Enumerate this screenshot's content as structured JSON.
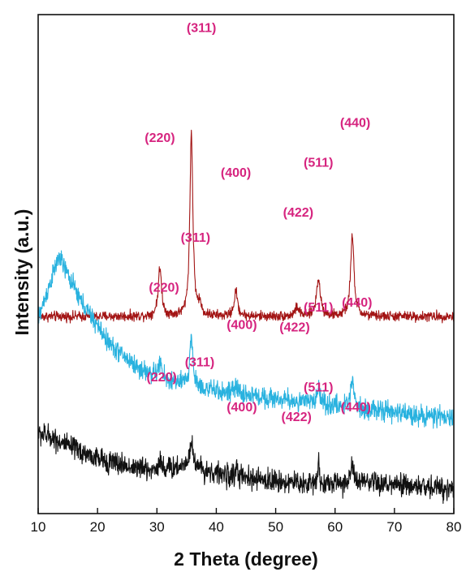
{
  "chart_data": {
    "type": "line",
    "xlabel": "2 Theta (degree)",
    "ylabel": "Intensity (a.u.)",
    "xlim": [
      10,
      80
    ],
    "xticks": [
      "10",
      "20",
      "30",
      "40",
      "50",
      "60",
      "70",
      "80"
    ],
    "yticks_shown": false,
    "grid": false,
    "legend": "none",
    "label_color": "#d6247f",
    "series": [
      {
        "color": "#a31515",
        "baseline_fraction": 0.395,
        "noise": 0.007,
        "background": [
          [
            10,
            0.0
          ],
          [
            80,
            0.0
          ]
        ],
        "peaks": [
          [
            30.5,
            0.095,
            0.35
          ],
          [
            35.8,
            0.37,
            0.3
          ],
          [
            37.2,
            0.02,
            0.3
          ],
          [
            43.3,
            0.05,
            0.35
          ],
          [
            53.6,
            0.018,
            0.4
          ],
          [
            57.2,
            0.075,
            0.4
          ],
          [
            62.9,
            0.16,
            0.35
          ]
        ],
        "labels": [
          {
            "text": "(220)",
            "x": 30.5,
            "y": 0.745
          },
          {
            "text": "(311)",
            "x": 37.5,
            "y": 0.965
          },
          {
            "text": "(400)",
            "x": 43.3,
            "y": 0.675
          },
          {
            "text": "(422)",
            "x": 53.8,
            "y": 0.595
          },
          {
            "text": "(511)",
            "x": 57.2,
            "y": 0.695
          },
          {
            "text": "(440)",
            "x": 63.4,
            "y": 0.775
          }
        ]
      },
      {
        "color": "#29b2df",
        "baseline_fraction": 0.19,
        "noise": 0.014,
        "background": [
          [
            10,
            0.2
          ],
          [
            13.5,
            0.325
          ],
          [
            17,
            0.24
          ],
          [
            22,
            0.15
          ],
          [
            27,
            0.1
          ],
          [
            32,
            0.075
          ],
          [
            40,
            0.055
          ],
          [
            50,
            0.04
          ],
          [
            60,
            0.025
          ],
          [
            80,
            0.0
          ]
        ],
        "peaks": [
          [
            30.5,
            0.03,
            0.35
          ],
          [
            35.8,
            0.1,
            0.3
          ],
          [
            43.3,
            0.012,
            0.4
          ],
          [
            57.2,
            0.03,
            0.4
          ],
          [
            62.9,
            0.06,
            0.35
          ]
        ],
        "labels": [
          {
            "text": "(220)",
            "x": 31.2,
            "y": 0.445
          },
          {
            "text": "(311)",
            "x": 36.5,
            "y": 0.545
          },
          {
            "text": "(400)",
            "x": 44.3,
            "y": 0.37
          },
          {
            "text": "(422)",
            "x": 53.2,
            "y": 0.365
          },
          {
            "text": "(511)",
            "x": 57.2,
            "y": 0.405
          },
          {
            "text": "(440)",
            "x": 63.7,
            "y": 0.415
          }
        ]
      },
      {
        "color": "#111111",
        "baseline_fraction": 0.03,
        "noise": 0.016,
        "background": [
          [
            10,
            0.13
          ],
          [
            12,
            0.125
          ],
          [
            15,
            0.105
          ],
          [
            20,
            0.08
          ],
          [
            25,
            0.065
          ],
          [
            30,
            0.055
          ],
          [
            35,
            0.065
          ],
          [
            40,
            0.05
          ],
          [
            45,
            0.04
          ],
          [
            55,
            0.03
          ],
          [
            65,
            0.03
          ],
          [
            80,
            0.02
          ]
        ],
        "peaks": [
          [
            30.5,
            0.02,
            0.4
          ],
          [
            35.8,
            0.045,
            0.45
          ],
          [
            43.4,
            0.025,
            0.15
          ],
          [
            57.2,
            0.06,
            0.12
          ],
          [
            62.9,
            0.03,
            0.4
          ]
        ],
        "labels": [
          {
            "text": "(220)",
            "x": 30.8,
            "y": 0.265
          },
          {
            "text": "(311)",
            "x": 37.2,
            "y": 0.295
          },
          {
            "text": "(400)",
            "x": 44.3,
            "y": 0.205
          },
          {
            "text": "(422)",
            "x": 53.5,
            "y": 0.185
          },
          {
            "text": "(511)",
            "x": 57.2,
            "y": 0.245
          },
          {
            "text": "(440)",
            "x": 63.5,
            "y": 0.205
          }
        ]
      }
    ]
  }
}
